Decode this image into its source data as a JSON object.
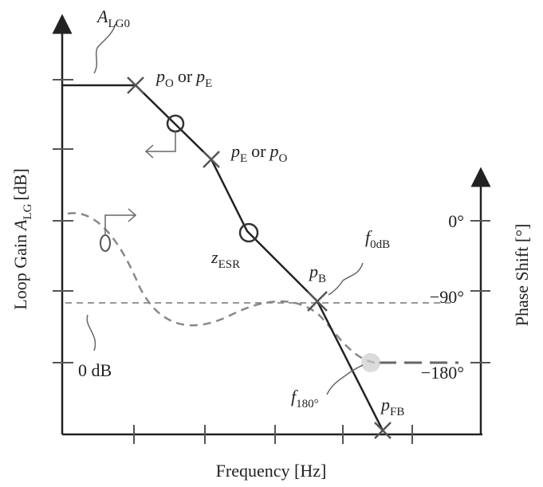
{
  "annotations": {
    "a_lg0": {
      "symbol": "A",
      "sub": "LG0"
    },
    "po_or_pe": {
      "symbol": "p",
      "sub": "O",
      "mid": "or",
      "symbol2": "p",
      "sub2": "E"
    },
    "pe_or_po": {
      "symbol": "p",
      "sub": "E",
      "mid": "or",
      "symbol2": "p",
      "sub2": "O"
    },
    "z_esr": {
      "symbol": "z",
      "sub": "ESR"
    },
    "p_b": {
      "symbol": "p",
      "sub": "B"
    },
    "f_0db": {
      "symbol": "f",
      "sub": "0dB"
    },
    "f_180": {
      "symbol": "f",
      "sub": "180°"
    },
    "p_fb": {
      "symbol": "p",
      "sub": "FB"
    },
    "zero_db": "0 dB"
  },
  "phase_labels": [
    "0°",
    "−90°",
    "−180°"
  ],
  "axes": {
    "y_label": {
      "prefix": "Loop Gain",
      "symbol": "A",
      "sub": "LG",
      "suffix": "[dB]"
    },
    "y2_label": "Phase Shift [°]",
    "x_label": "Frequency [Hz]"
  }
}
